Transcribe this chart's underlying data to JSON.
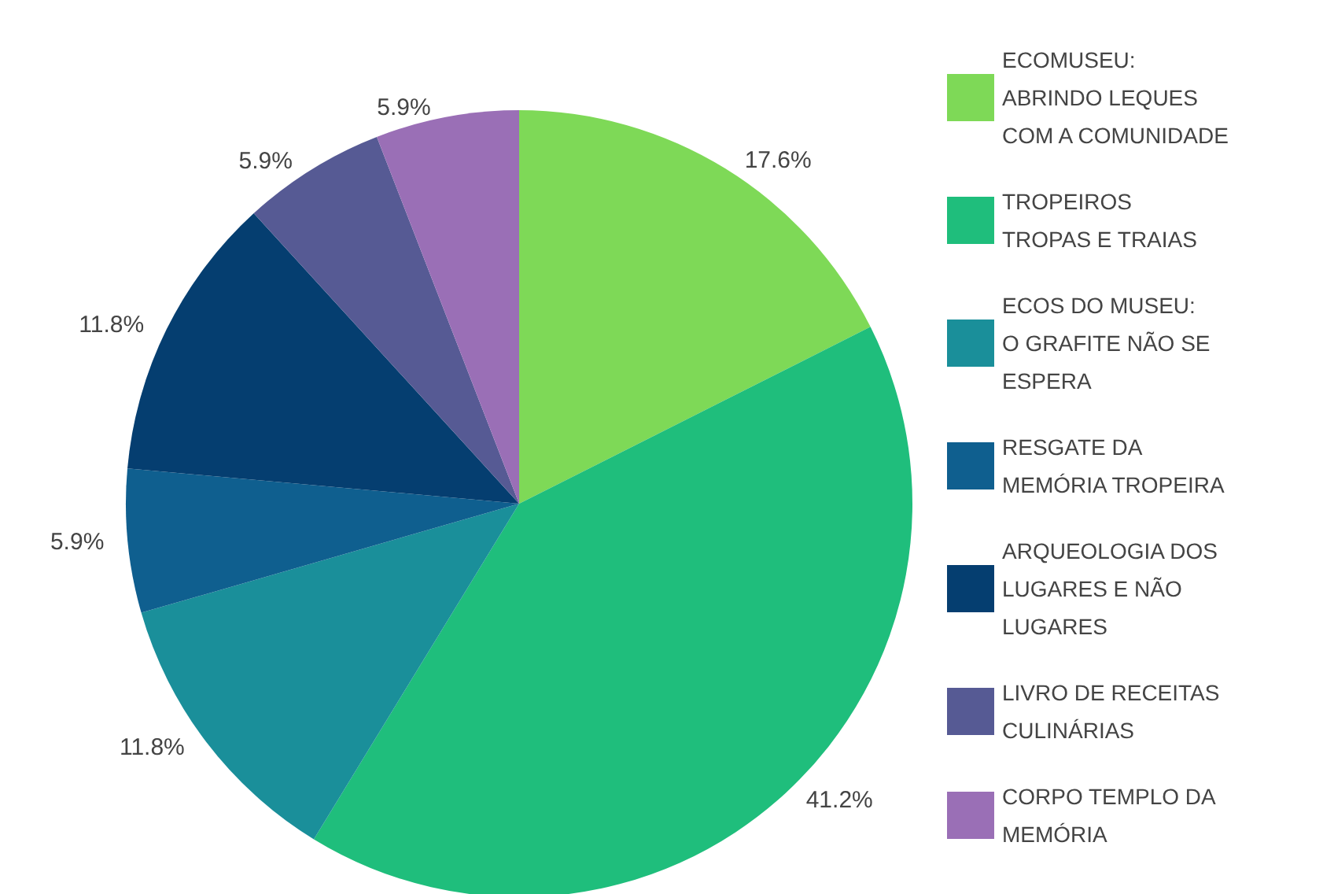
{
  "chart_data": {
    "type": "pie",
    "categories": [
      "ECOMUSEU:\nABRINDO LEQUES\nCOM A COMUNIDADE",
      "TROPEIROS\nTROPAS E TRAIAS",
      "ECOS DO MUSEU:\nO GRAFITE NÃO SE\nESPERA",
      "RESGATE DA\nMEMÓRIA TROPEIRA",
      "ARQUEOLOGIA DOS\nLUGARES E NÃO\nLUGARES",
      "LIVRO DE RECEITAS\nCULINÁRIAS",
      "CORPO TEMPLO DA\nMEMÓRIA"
    ],
    "values": [
      17.6,
      41.2,
      11.8,
      5.9,
      11.8,
      5.9,
      5.9
    ],
    "colors": [
      "#7ed957",
      "#1fbe7c",
      "#1a8f9a",
      "#0f5f8f",
      "#053e70",
      "#565a94",
      "#9a6fb6"
    ],
    "value_labels": [
      "17.6%",
      "41.2%",
      "11.8%",
      "5.9%",
      "11.8%",
      "5.9%",
      "5.9%"
    ],
    "legend": "right"
  }
}
